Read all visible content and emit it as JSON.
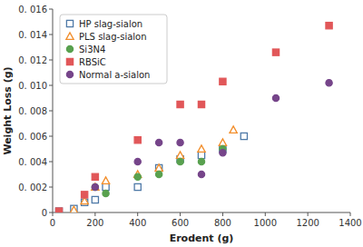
{
  "chart_data": {
    "type": "scatter",
    "xlabel": "Erodent (g)",
    "ylabel": "Weight Loss (g)",
    "xlim": [
      0,
      1400
    ],
    "ylim": [
      0,
      0.016
    ],
    "xticks": [
      0,
      200,
      400,
      600,
      800,
      1000,
      1200,
      1400
    ],
    "yticks": [
      0,
      {
        "value": 0.002,
        "label": "0. 002"
      },
      {
        "value": 0.004,
        "label": "0. 004"
      },
      {
        "value": 0.006,
        "label": "0. 006"
      },
      {
        "value": 0.008,
        "label": "0. 008"
      },
      {
        "value": 0.01,
        "label": "0. 010"
      },
      {
        "value": 0.012,
        "label": "0. 012"
      },
      {
        "value": 0.014,
        "label": "0. 014"
      },
      {
        "value": 0.016,
        "label": "0. 016"
      }
    ],
    "grid": false,
    "legend": "upper-left",
    "series": [
      {
        "name": "HP slag-sialon",
        "color": "#4e79a7",
        "marker": "square-open",
        "x": [
          30,
          100,
          150,
          200,
          250,
          400,
          500,
          600,
          700,
          800,
          900
        ],
        "values": [
          0.0001,
          0.0003,
          0.0008,
          0.001,
          0.002,
          0.002,
          0.0035,
          0.0042,
          0.0045,
          0.005,
          0.006
        ]
      },
      {
        "name": "PLS slag-sialon",
        "color": "#f28e2b",
        "marker": "triangle-open",
        "x": [
          100,
          150,
          200,
          250,
          400,
          500,
          600,
          700,
          800,
          850
        ],
        "values": [
          0.0002,
          0.0009,
          0.002,
          0.0025,
          0.003,
          0.0035,
          0.0045,
          0.005,
          0.0055,
          0.0065
        ]
      },
      {
        "name": "Si3N4",
        "color": "#59a14f",
        "marker": "circle",
        "x": [
          200,
          250,
          400,
          500,
          600,
          700,
          800
        ],
        "values": [
          0.002,
          0.0015,
          0.0028,
          0.003,
          0.004,
          0.004,
          0.005
        ]
      },
      {
        "name": "RBSiC",
        "color": "#e15759",
        "marker": "square",
        "x": [
          30,
          150,
          200,
          400,
          600,
          700,
          800,
          1050,
          1300
        ],
        "values": [
          0.0001,
          0.0014,
          0.0028,
          0.0057,
          0.0085,
          0.0085,
          0.0103,
          0.0126,
          0.0147
        ]
      },
      {
        "name": "Normal a-sialon",
        "color": "#76458a",
        "marker": "circle",
        "x": [
          200,
          400,
          500,
          600,
          700,
          800,
          1050,
          1300
        ],
        "values": [
          0.002,
          0.004,
          0.0055,
          0.0055,
          0.003,
          0.0047,
          0.009,
          0.0102
        ]
      }
    ]
  }
}
